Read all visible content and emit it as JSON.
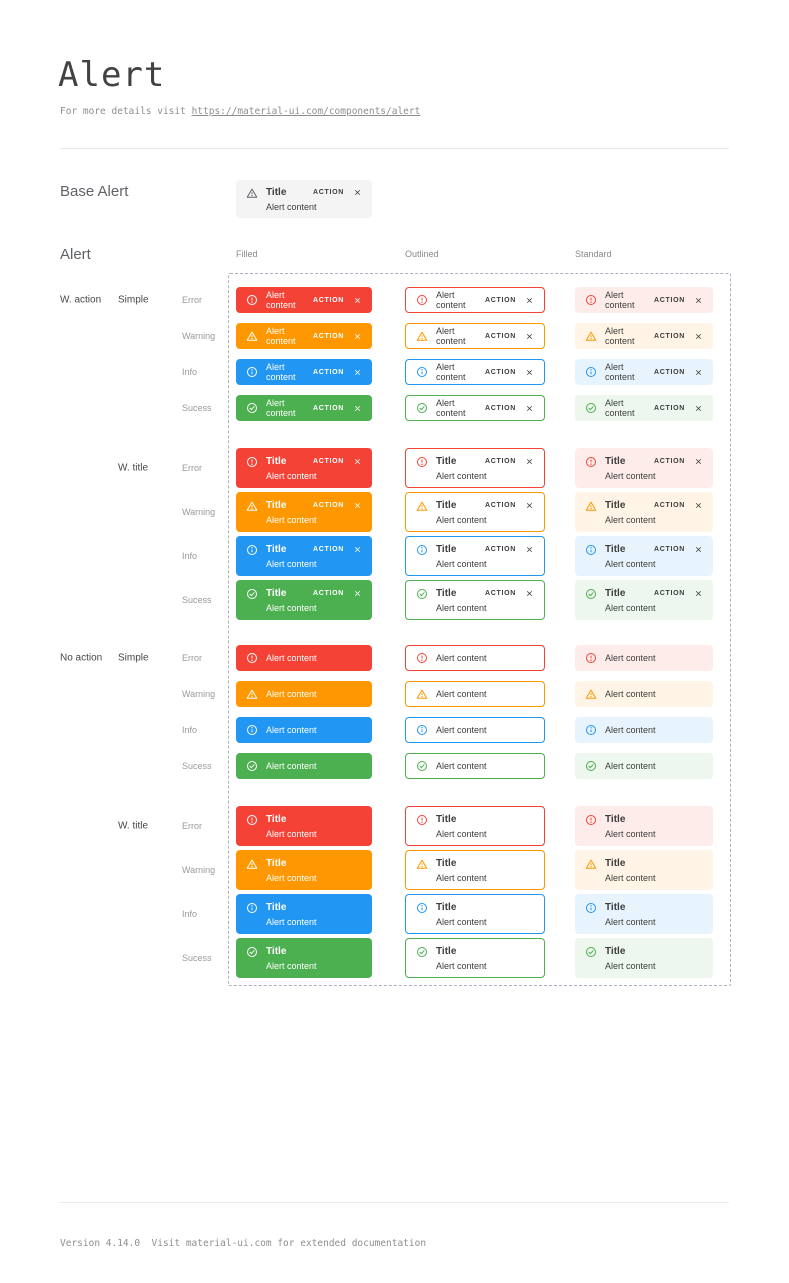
{
  "page": {
    "title": "Alert",
    "subtitle_prefix": "For more details visit ",
    "subtitle_link_text": "https://material-ui.com/components/alert",
    "footer_text": "Version 4.14.0  Visit material-ui.com for extended documentation"
  },
  "labels": {
    "base_section": "Base Alert",
    "matrix_section": "Alert",
    "title": "Title",
    "content": "Alert content",
    "action": "ACTION"
  },
  "columns": [
    {
      "label": "Filled",
      "variant": "filled"
    },
    {
      "label": "Outlined",
      "variant": "outlined"
    },
    {
      "label": "Standard",
      "variant": "standard"
    }
  ],
  "severities": [
    {
      "label": "Error",
      "key": "error",
      "icon": "error-icon",
      "main": "#f44336",
      "standard_bg": "#fdecea"
    },
    {
      "label": "Warning",
      "key": "warning",
      "icon": "warning-icon",
      "main": "#ff9800",
      "standard_bg": "#fff4e5"
    },
    {
      "label": "Info",
      "key": "info",
      "icon": "info-icon",
      "main": "#2196f3",
      "standard_bg": "#e8f4fd"
    },
    {
      "label": "Sucess",
      "key": "success",
      "icon": "success-icon",
      "main": "#4caf50",
      "standard_bg": "#edf7ed"
    }
  ],
  "groups": [
    {
      "label": "W. action",
      "with_action": true,
      "subgroups": [
        {
          "label": "Simple",
          "with_title": false
        },
        {
          "label": "W. title",
          "with_title": true
        }
      ]
    },
    {
      "label": "No action",
      "with_action": false,
      "subgroups": [
        {
          "label": "Simple",
          "with_title": false
        },
        {
          "label": "W. title",
          "with_title": true
        }
      ]
    }
  ],
  "base_alert": {
    "icon": "warning-icon",
    "bg": "#f4f4f4",
    "icon_color": "#5f6368"
  },
  "palette": {
    "white": "#ffffff",
    "text_dark": "#3d3d3d"
  }
}
